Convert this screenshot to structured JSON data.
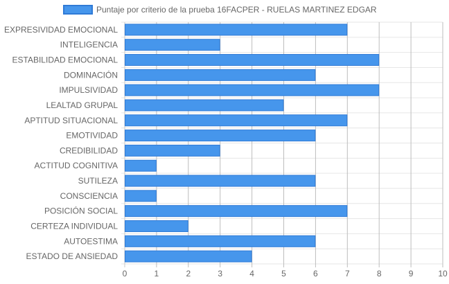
{
  "chart_data": {
    "type": "bar",
    "orientation": "horizontal",
    "categories": [
      "EXPRESIVIDAD EMOCIONAL",
      "INTELIGENCIA",
      "ESTABILIDAD EMOCIONAL",
      "DOMINACIÓN",
      "IMPULSIVIDAD",
      "LEALTAD GRUPAL",
      "APTITUD SITUACIONAL",
      "EMOTIVIDAD",
      "CREDIBILIDAD",
      "ACTITUD COGNITIVA",
      "SUTILEZA",
      "CONSCIENCIA",
      "POSICIÓN SOCIAL",
      "CERTEZA INDIVIDUAL",
      "AUTOESTIMA",
      "ESTADO DE ANSIEDAD"
    ],
    "series": [
      {
        "name": "Puntaje por criterio de la prueba 16FACPER - RUELAS MARTINEZ EDGAR",
        "values": [
          7,
          3,
          8,
          6,
          8,
          5,
          7,
          6,
          3,
          1,
          6,
          1,
          7,
          2,
          6,
          4
        ],
        "color": "#4696ec",
        "border_color": "#2f7ad6"
      }
    ],
    "xlim": [
      0,
      10
    ],
    "x_ticks": [
      "0",
      "1",
      "2",
      "3",
      "4",
      "5",
      "6",
      "7",
      "8",
      "9",
      "10"
    ],
    "grid": true,
    "legend_position": "top-center"
  }
}
